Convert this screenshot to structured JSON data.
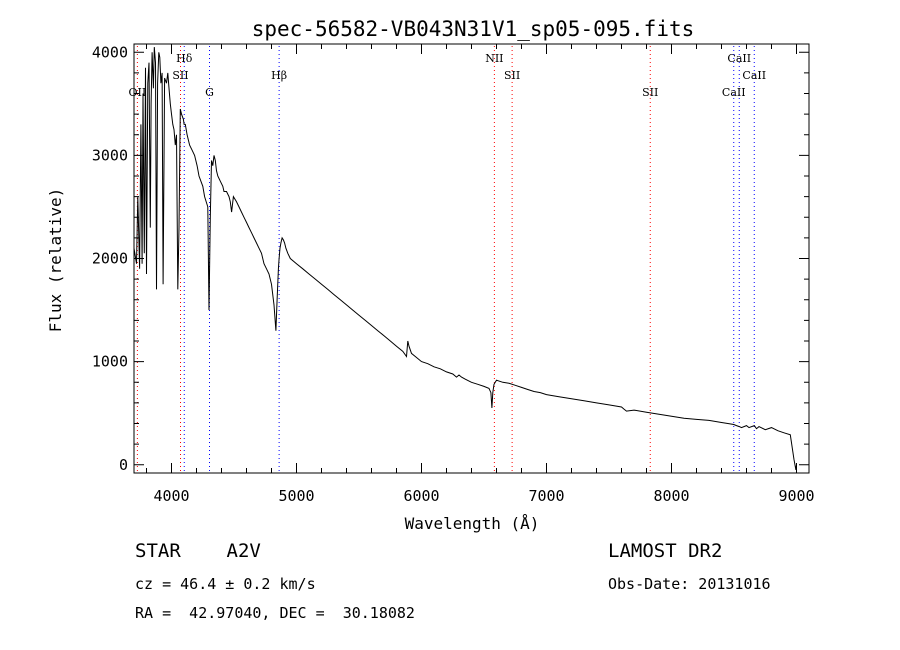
{
  "chart_data": {
    "type": "line",
    "title": "spec-56582-VB043N31V1_sp05-095.fits",
    "xlabel": "Wavelength (Å)",
    "ylabel": "Flux (relative)",
    "xlim": [
      3700,
      9100
    ],
    "ylim": [
      -80,
      4080
    ],
    "x_ticks": [
      4000,
      5000,
      6000,
      7000,
      8000,
      9000
    ],
    "y_ticks": [
      0,
      1000,
      2000,
      3000,
      4000
    ],
    "grid": false,
    "series": [
      {
        "x": [
          3700,
          3720,
          3730,
          3745,
          3755,
          3765,
          3772,
          3782,
          3792,
          3800,
          3810,
          3820,
          3830,
          3837,
          3845,
          3855,
          3862,
          3872,
          3880,
          3889,
          3898,
          3906,
          3915,
          3925,
          3933,
          3945,
          3960,
          3970,
          3980,
          3990,
          4000,
          4010,
          4020,
          4030,
          4040,
          4050,
          4060,
          4070,
          4080,
          4095,
          4101,
          4110,
          4125,
          4145,
          4165,
          4185,
          4205,
          4220,
          4235,
          4250,
          4265,
          4290,
          4300,
          4310,
          4320,
          4330,
          4340,
          4350,
          4360,
          4370,
          4390,
          4410,
          4420,
          4440,
          4460,
          4470,
          4481,
          4495,
          4520,
          4540,
          4560,
          4580,
          4600,
          4620,
          4640,
          4660,
          4680,
          4700,
          4720,
          4740,
          4760,
          4780,
          4800,
          4820,
          4835,
          4845,
          4855,
          4861,
          4868,
          4875,
          4885,
          4895,
          4905,
          4915,
          4930,
          4950,
          5000,
          5050,
          5100,
          5150,
          5200,
          5250,
          5300,
          5350,
          5400,
          5450,
          5500,
          5550,
          5600,
          5650,
          5700,
          5750,
          5800,
          5850,
          5880,
          5890,
          5900,
          5920,
          5950,
          6000,
          6050,
          6100,
          6150,
          6200,
          6250,
          6280,
          6300,
          6320,
          6350,
          6400,
          6450,
          6500,
          6540,
          6555,
          6563,
          6570,
          6580,
          6600,
          6650,
          6700,
          6750,
          6800,
          6850,
          6900,
          6950,
          7000,
          7100,
          7200,
          7300,
          7400,
          7500,
          7600,
          7620,
          7640,
          7700,
          7800,
          7900,
          8000,
          8100,
          8200,
          8300,
          8400,
          8450,
          8498,
          8520,
          8542,
          8560,
          8600,
          8620,
          8662,
          8680,
          8700,
          8750,
          8800,
          8850,
          8900,
          8950,
          8980,
          8995,
          9000
        ],
        "y": [
          2100,
          1950,
          2600,
          1900,
          3300,
          1950,
          3600,
          2050,
          3850,
          1850,
          3700,
          3900,
          2300,
          3500,
          4000,
          3650,
          4050,
          3900,
          1700,
          3700,
          4000,
          3950,
          3700,
          3800,
          1750,
          3750,
          3700,
          3800,
          3650,
          3500,
          3400,
          3300,
          3250,
          3100,
          3200,
          1700,
          2300,
          3450,
          3400,
          3350,
          3300,
          3300,
          3200,
          3100,
          3050,
          3000,
          2900,
          2800,
          2750,
          2700,
          2600,
          2500,
          1500,
          2400,
          2950,
          2900,
          3000,
          2950,
          2850,
          2800,
          2750,
          2700,
          2650,
          2650,
          2600,
          2550,
          2450,
          2600,
          2550,
          2500,
          2450,
          2400,
          2350,
          2300,
          2250,
          2200,
          2150,
          2100,
          2050,
          1950,
          1900,
          1850,
          1750,
          1550,
          1300,
          1600,
          1900,
          2000,
          2100,
          2150,
          2200,
          2180,
          2150,
          2100,
          2050,
          2000,
          1950,
          1900,
          1850,
          1800,
          1750,
          1700,
          1650,
          1600,
          1550,
          1500,
          1450,
          1400,
          1350,
          1300,
          1250,
          1200,
          1150,
          1100,
          1050,
          1200,
          1150,
          1080,
          1050,
          1000,
          980,
          950,
          930,
          900,
          880,
          850,
          870,
          850,
          830,
          800,
          780,
          760,
          740,
          700,
          550,
          700,
          780,
          820,
          800,
          790,
          770,
          750,
          730,
          710,
          700,
          680,
          660,
          640,
          620,
          600,
          580,
          560,
          540,
          520,
          530,
          510,
          490,
          470,
          450,
          440,
          430,
          410,
          400,
          390,
          380,
          370,
          360,
          380,
          360,
          380,
          350,
          370,
          340,
          360,
          330,
          310,
          290,
          50,
          -50,
          0
        ]
      }
    ],
    "line_markers": [
      {
        "label": "OII",
        "x": 3727,
        "row": "mid",
        "color": "#ff0000"
      },
      {
        "label": "Hδ",
        "x": 4102,
        "row": "top",
        "color": "#0000ff"
      },
      {
        "label": "SII",
        "x": 4072,
        "row": "upper",
        "color": "#ff0000"
      },
      {
        "label": "G",
        "x": 4304,
        "row": "mid",
        "color": "#0000ff"
      },
      {
        "label": "Hβ",
        "x": 4861,
        "row": "upper",
        "color": "#0000ff"
      },
      {
        "label": "NII",
        "x": 6583,
        "row": "top",
        "color": "#ff0000"
      },
      {
        "label": "SII",
        "x": 6725,
        "row": "upper",
        "color": "#ff0000"
      },
      {
        "label": "SII",
        "x": 7830,
        "row": "mid",
        "color": "#ff0000"
      },
      {
        "label": "CaII",
        "x": 8542,
        "row": "top",
        "color": "#0000ff"
      },
      {
        "label": "CaII",
        "x": 8662,
        "row": "upper",
        "color": "#0000ff"
      },
      {
        "label": "CaII",
        "x": 8498,
        "row": "mid",
        "color": "#0000ff"
      }
    ]
  },
  "info": {
    "class_line": "STAR    A2V",
    "cz_line": "cz = 46.4 ± 0.2 km/s",
    "coords_line": "RA =  42.97040, DEC =  30.18082",
    "survey": "LAMOST DR2",
    "obs_date": "Obs-Date: 20131016"
  }
}
